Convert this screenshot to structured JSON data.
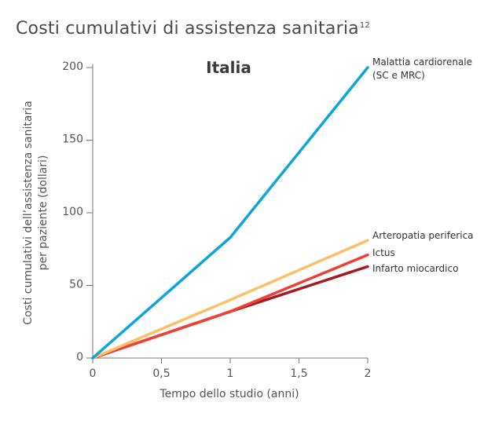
{
  "header": {
    "title": "Costi cumulativi di assistenza sanitaria",
    "title_sup": "12"
  },
  "chart_data": {
    "type": "line",
    "title": "Costi cumulativi di assistenza sanitaria",
    "subtitle": "Italia",
    "xlabel": "Tempo dello studio (anni)",
    "ylabel_lines": [
      "Costi cumulativi dell’assistenza sanitaria",
      "per paziente (dollari)"
    ],
    "xlim": [
      0,
      2
    ],
    "ylim": [
      0,
      200
    ],
    "x_ticks": [
      0,
      0.5,
      1,
      1.5,
      2
    ],
    "x_tick_labels": [
      "0",
      "0,5",
      "1",
      "1,5",
      "2"
    ],
    "y_ticks": [
      0,
      50,
      100,
      150,
      200
    ],
    "y_tick_labels": [
      "0",
      "50",
      "100",
      "150",
      "200"
    ],
    "grid": false,
    "series": [
      {
        "name_lines": [
          "Malattia cardiorenale",
          "(SC e MRC)"
        ],
        "color": "#0ea5d9",
        "x": [
          0,
          1,
          2
        ],
        "y": [
          0,
          83,
          200
        ]
      },
      {
        "name_lines": [
          "Arteropatia periferica"
        ],
        "color": "#fcbf6a",
        "x": [
          0,
          1,
          2
        ],
        "y": [
          0,
          40,
          81
        ]
      },
      {
        "name_lines": [
          "Ictus"
        ],
        "color": "#ee4036",
        "x": [
          0,
          1,
          2
        ],
        "y": [
          0,
          32,
          71
        ]
      },
      {
        "name_lines": [
          "Infarto miocardico"
        ],
        "color": "#a31c22",
        "x": [
          0,
          1,
          2
        ],
        "y": [
          0,
          32,
          63
        ]
      }
    ]
  }
}
